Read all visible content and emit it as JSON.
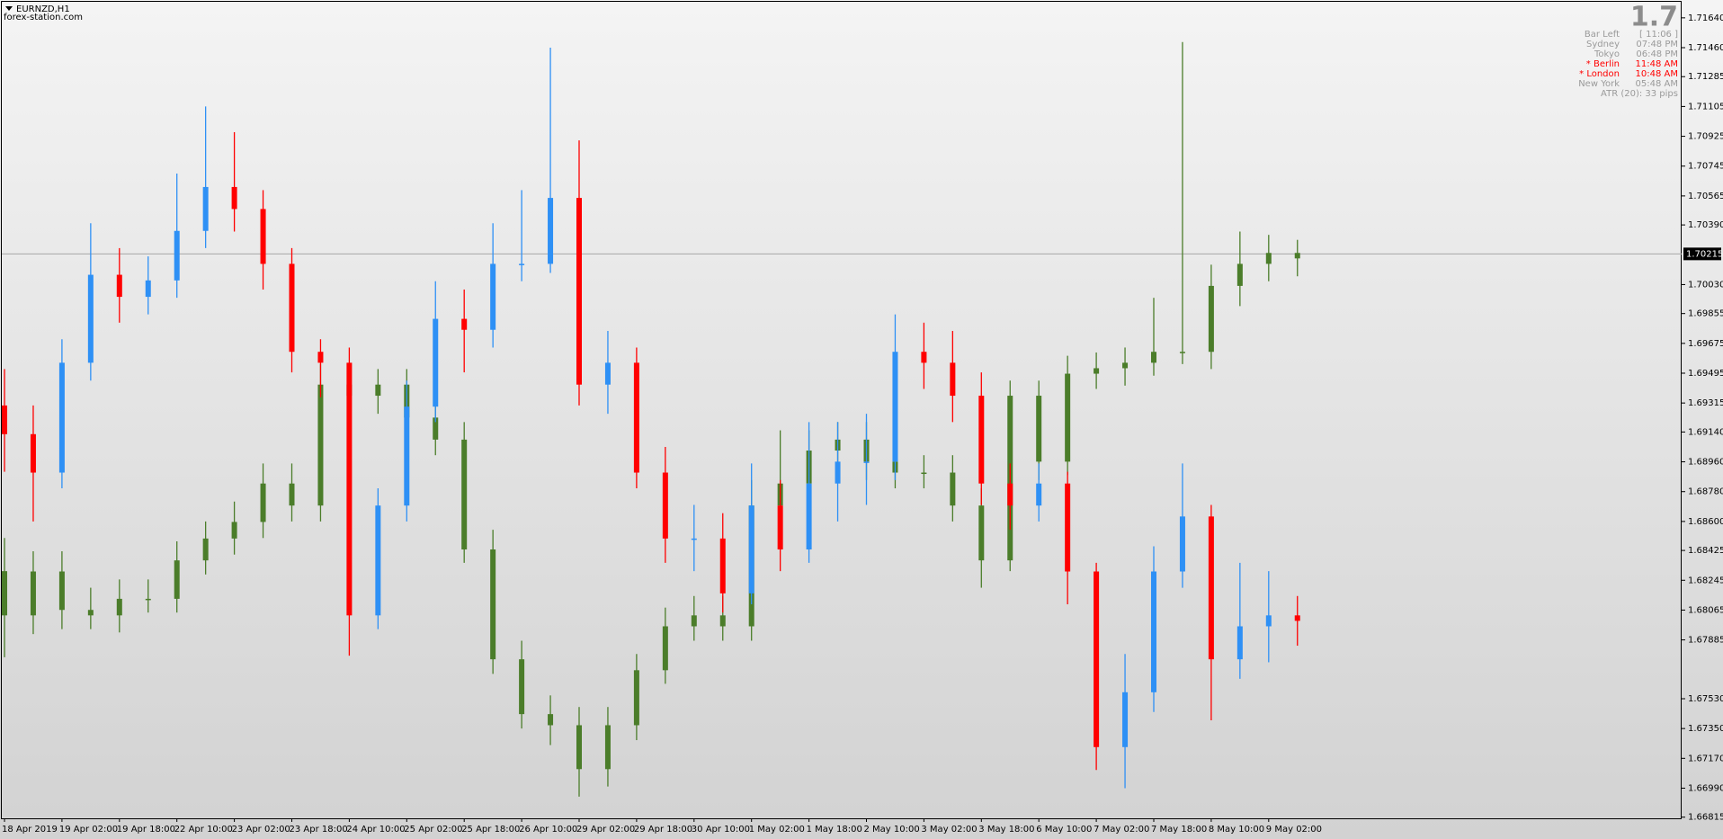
{
  "chart_data": {
    "type": "candlestick",
    "title": "EURNZD,H1",
    "subtitle": "forex-station.com",
    "categories": [
      "18 Apr 2019",
      null,
      "19 Apr 02:00",
      null,
      "19 Apr 18:00",
      null,
      "22 Apr 10:00",
      null,
      "23 Apr 02:00",
      null,
      "23 Apr 18:00",
      null,
      "24 Apr 10:00",
      null,
      "25 Apr 02:00",
      null,
      "25 Apr 18:00",
      null,
      "26 Apr 10:00",
      null,
      "29 Apr 02:00",
      null,
      "29 Apr 18:00",
      null,
      "30 Apr 10:00",
      null,
      "1 May 02:00",
      null,
      "1 May 18:00",
      null,
      "2 May 10:00",
      null,
      "3 May 02:00",
      null,
      "3 May 18:00",
      null,
      "6 May 10:00",
      null,
      "7 May 02:00",
      null,
      "7 May 18:00",
      null,
      "8 May 10:00",
      null,
      "9 May 02:00",
      null
    ],
    "series": [
      {
        "color": "#4b7d2a",
        "open": [
          1.683,
          1.68033,
          1.68298,
          1.68066,
          1.68033,
          1.68133,
          1.68133,
          1.68365,
          1.68497,
          1.68597,
          1.68829,
          1.68696,
          1.69426,
          1.69359,
          1.69426,
          1.69227,
          1.69094,
          1.68431,
          1.67768,
          1.67437,
          1.6737,
          1.67105,
          1.6737,
          1.67702,
          1.67967,
          1.68033,
          1.67967,
          1.68696,
          1.68829,
          1.69028,
          1.69094,
          1.68961,
          1.68895,
          1.68895,
          1.68696,
          1.68365,
          1.69359,
          1.68961,
          1.69492,
          1.69525,
          1.69558,
          1.69624,
          1.69624,
          1.70022,
          1.70155,
          1.70221
        ],
        "high": [
          1.685,
          1.6842,
          1.6842,
          1.682,
          1.6825,
          1.6825,
          1.6848,
          1.686,
          1.6872,
          1.6895,
          1.6895,
          1.6955,
          1.6955,
          1.6952,
          1.6952,
          1.6935,
          1.692,
          1.6855,
          1.6788,
          1.6755,
          1.6748,
          1.6748,
          1.678,
          1.6808,
          1.6815,
          1.6815,
          1.6885,
          1.6915,
          1.6915,
          1.692,
          1.692,
          1.6905,
          1.69,
          1.69,
          1.688,
          1.6945,
          1.6945,
          1.696,
          1.6962,
          1.6965,
          1.6995,
          1.71494,
          1.7015,
          1.7035,
          1.7033,
          1.703
        ],
        "low": [
          1.6778,
          1.6792,
          1.6795,
          1.6795,
          1.6793,
          1.6805,
          1.6805,
          1.6828,
          1.684,
          1.685,
          1.686,
          1.686,
          1.6925,
          1.6925,
          1.6915,
          1.69,
          1.6835,
          1.6768,
          1.6735,
          1.6725,
          1.66939,
          1.67,
          1.6728,
          1.6762,
          1.6788,
          1.6788,
          1.6788,
          1.686,
          1.6875,
          1.6895,
          1.6885,
          1.688,
          1.688,
          1.686,
          1.682,
          1.683,
          1.6885,
          1.6888,
          1.694,
          1.6942,
          1.6948,
          1.6955,
          1.6952,
          1.699,
          1.7005,
          1.7008
        ],
        "close": [
          1.68033,
          1.68298,
          1.68066,
          1.68033,
          1.68133,
          1.68133,
          1.68365,
          1.68497,
          1.68597,
          1.68829,
          1.68696,
          1.69426,
          1.69359,
          1.69426,
          1.69227,
          1.69094,
          1.68431,
          1.67768,
          1.67437,
          1.6737,
          1.67105,
          1.6737,
          1.67702,
          1.67967,
          1.68033,
          1.67967,
          1.68696,
          1.68829,
          1.69028,
          1.69094,
          1.68961,
          1.68895,
          1.68895,
          1.68696,
          1.68365,
          1.69359,
          1.68961,
          1.69492,
          1.69525,
          1.69558,
          1.69624,
          1.69624,
          1.70022,
          1.70155,
          1.70221,
          1.70188
        ]
      },
      {
        "up_color": "#2e90f5",
        "down_color": "#ff0000",
        "open": [
          1.693,
          1.69127,
          1.68895,
          1.69558,
          1.70089,
          1.69956,
          1.70055,
          1.70354,
          1.70619,
          1.70486,
          1.70155,
          1.69624,
          1.69558,
          1.68033,
          1.68696,
          1.69293,
          1.69823,
          1.69757,
          1.70155,
          1.70155,
          1.70553,
          1.69426,
          1.69558,
          1.68895,
          1.68497,
          1.68497,
          1.68166,
          1.68696,
          1.68431,
          1.68829,
          1.68961,
          1.68961,
          1.69624,
          1.69558,
          1.69359,
          1.68829,
          1.68696,
          1.68829,
          1.68298,
          1.67238,
          1.67569,
          1.68298,
          1.6863,
          1.67768,
          1.67967,
          1.68033
        ],
        "high": [
          1.6952,
          1.693,
          1.697,
          1.704,
          1.7025,
          1.702,
          1.707,
          1.71105,
          1.7095,
          1.706,
          1.7025,
          1.697,
          1.6965,
          1.688,
          1.6945,
          1.7005,
          1.7,
          1.704,
          1.706,
          1.7146,
          1.709,
          1.6975,
          1.6965,
          1.6905,
          1.687,
          1.6865,
          1.6895,
          1.6885,
          1.692,
          1.692,
          1.6925,
          1.6985,
          1.698,
          1.6975,
          1.695,
          1.6895,
          1.6895,
          1.689,
          1.6835,
          1.678,
          1.6845,
          1.6895,
          1.687,
          1.6835,
          1.683,
          1.6815
        ],
        "low": [
          1.689,
          1.686,
          1.688,
          1.6945,
          1.698,
          1.6985,
          1.6995,
          1.7025,
          1.7035,
          1.7,
          1.695,
          1.6935,
          1.6779,
          1.6795,
          1.686,
          1.692,
          1.695,
          1.6965,
          1.7005,
          1.701,
          1.693,
          1.6925,
          1.688,
          1.6835,
          1.683,
          1.6805,
          1.681,
          1.683,
          1.6835,
          1.686,
          1.687,
          1.6885,
          1.694,
          1.692,
          1.687,
          1.6855,
          1.686,
          1.681,
          1.671,
          1.6699,
          1.6745,
          1.682,
          1.674,
          1.6765,
          1.6775,
          1.6785
        ],
        "close": [
          1.69127,
          1.68895,
          1.69558,
          1.70089,
          1.69956,
          1.70055,
          1.70354,
          1.70619,
          1.70486,
          1.70155,
          1.69624,
          1.69558,
          1.68033,
          1.68696,
          1.69293,
          1.69823,
          1.69757,
          1.70155,
          1.70155,
          1.70553,
          1.69426,
          1.69558,
          1.68895,
          1.68497,
          1.68497,
          1.68166,
          1.68696,
          1.68431,
          1.68829,
          1.68961,
          1.68961,
          1.69624,
          1.69558,
          1.69359,
          1.68829,
          1.68696,
          1.68829,
          1.68298,
          1.67238,
          1.67569,
          1.68298,
          1.6863,
          1.67768,
          1.67967,
          1.68033,
          1.68
        ]
      }
    ],
    "ylim": [
      1.66808,
      1.71726
    ],
    "yticks": [
      {
        "value": 1.7164,
        "label": "1.71640"
      },
      {
        "value": 1.7146,
        "label": "1.71460"
      },
      1.71285,
      1.71105,
      1.70925,
      1.70745,
      1.70565,
      {
        "value": 1.7039,
        "label": "1.70390"
      },
      {
        "value": 1.7003,
        "label": "1.70030"
      },
      1.69855,
      1.69675,
      1.69495,
      1.69315,
      {
        "value": 1.6914,
        "label": "1.69140"
      },
      {
        "value": 1.6896,
        "label": "1.68960"
      },
      {
        "value": 1.6878,
        "label": "1.68780"
      },
      {
        "value": 1.686,
        "label": "1.68600"
      },
      1.68425,
      1.68245,
      1.68065,
      1.67885,
      {
        "value": 1.6753,
        "label": "1.67530"
      },
      {
        "value": 1.6735,
        "label": "1.67350"
      },
      {
        "value": 1.6717,
        "label": "1.67170"
      },
      {
        "value": 1.6699,
        "label": "1.66990"
      },
      1.66815
    ],
    "price_line": 1.70215
  },
  "info_panel": {
    "big": "1.7",
    "rows": [
      {
        "label": "Bar Left",
        "value": "[ 11:06 ]",
        "color": "#9a9a9a"
      },
      {
        "label": "Sydney",
        "value": "07:48 PM",
        "color": "#9a9a9a"
      },
      {
        "label": "Tokyo",
        "value": "06:48 PM",
        "color": "#9a9a9a"
      },
      {
        "label": "* Berlin",
        "value": "11:48 AM",
        "color": "#ff0000"
      },
      {
        "label": "* London",
        "value": "10:48 AM",
        "color": "#ff0000"
      },
      {
        "label": "New York",
        "value": "05:48 AM",
        "color": "#9a9a9a"
      }
    ],
    "atr": "ATR (20): 33 pips"
  }
}
